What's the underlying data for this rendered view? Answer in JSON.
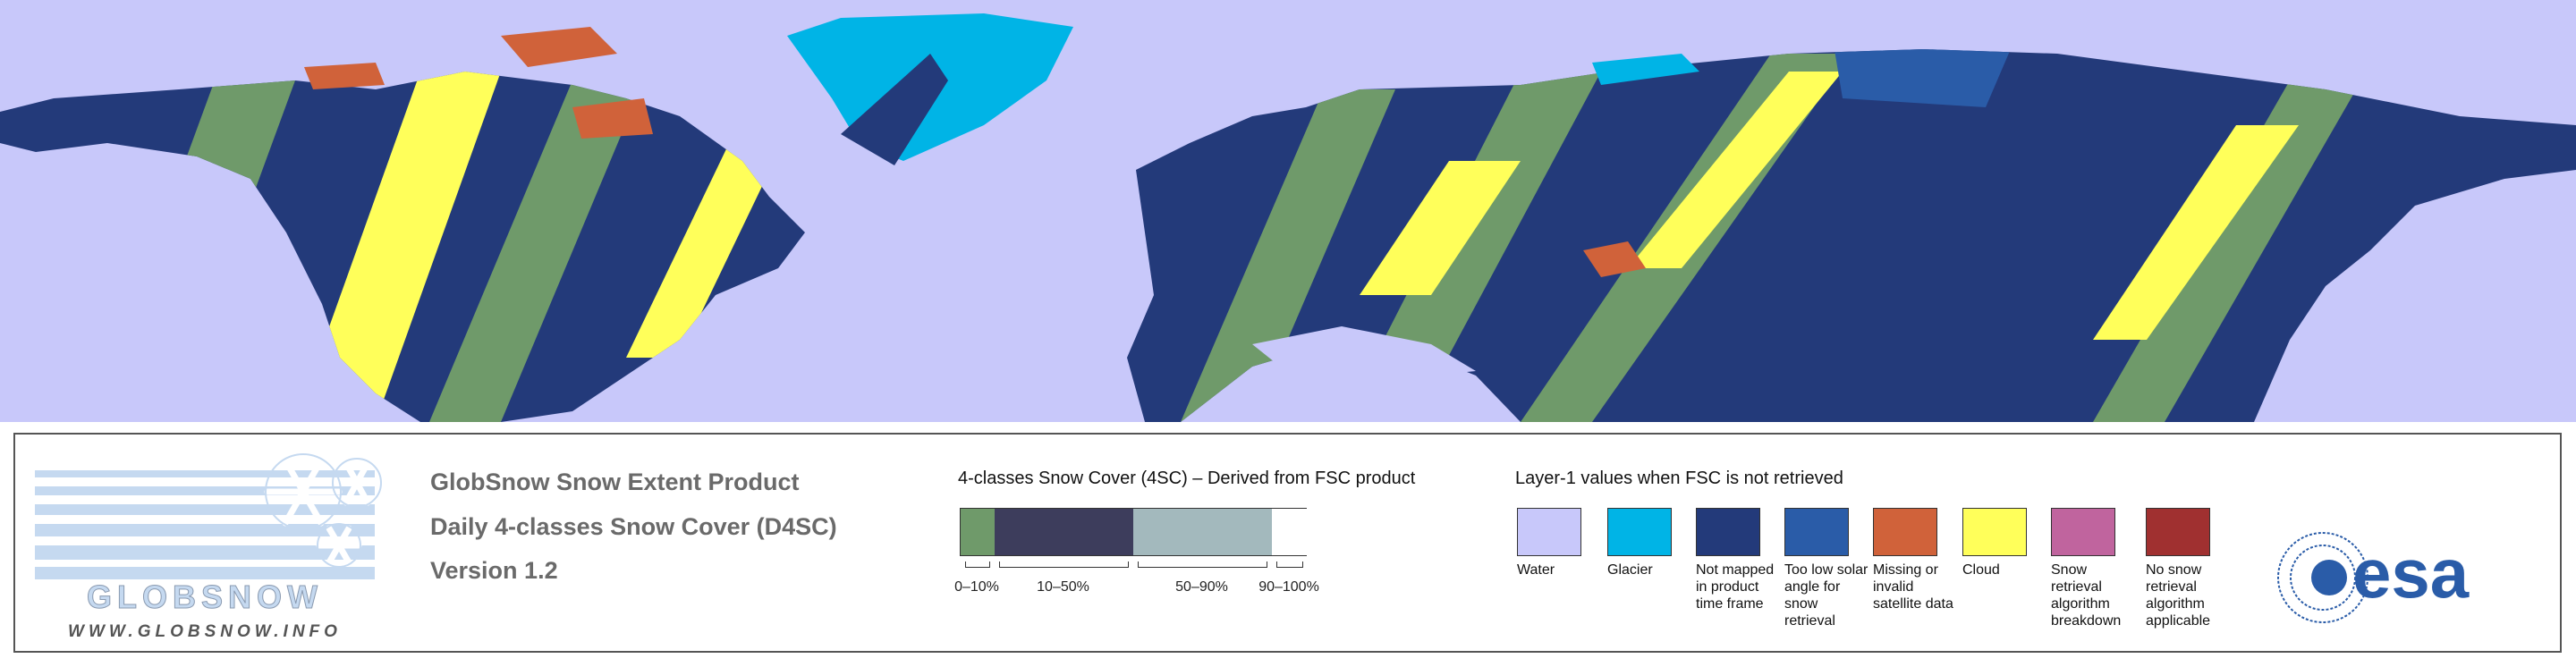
{
  "header": {
    "title": "GlobSnow Snow Extent Product",
    "subtitle": "Daily 4-classes Snow Cover (D4SC)",
    "version": "Version 1.2"
  },
  "logo": {
    "name": "GLOBSNOW",
    "url": "WWW.GLOBSNOW.INFO"
  },
  "scale": {
    "title": "4-classes Snow Cover (4SC) – Derived from FSC product",
    "classes": [
      {
        "label": "0–10%",
        "color": "#6f9a6a"
      },
      {
        "label": "10–50%",
        "color": "#3d3d5c"
      },
      {
        "label": "50–90%",
        "color": "#a3b9bd"
      },
      {
        "label": "90–100%",
        "color": "#ffffff"
      }
    ]
  },
  "layer1": {
    "title": "Layer-1 values when FSC is not retrieved",
    "items": [
      {
        "label": "Water",
        "color": "#c8c8fa"
      },
      {
        "label": "Glacier",
        "color": "#00b4e6"
      },
      {
        "label": "Not mapped in product time frame",
        "color": "#233a7a"
      },
      {
        "label": "Too low solar angle for snow retrieval",
        "color": "#2a5ca8"
      },
      {
        "label": "Missing or invalid satellite data",
        "color": "#d0623a"
      },
      {
        "label": "Cloud",
        "color": "#ffff5a"
      },
      {
        "label": "Snow retrieval algorithm breakdown",
        "color": "#c0649e"
      },
      {
        "label": "No snow retrieval algorithm applicable",
        "color": "#a03030"
      }
    ]
  },
  "agency": {
    "name": "esa"
  }
}
